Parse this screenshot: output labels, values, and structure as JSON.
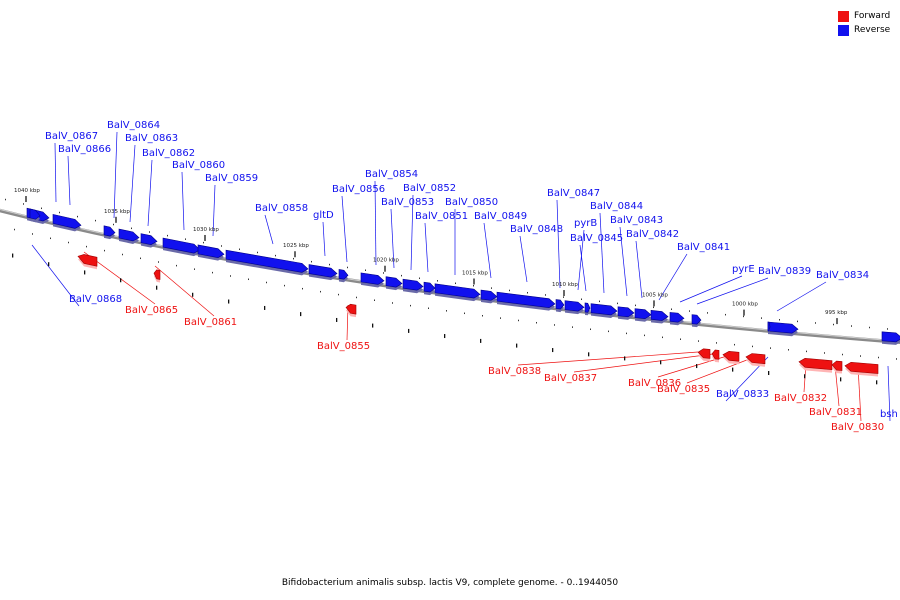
{
  "legend": {
    "forward_label": "Forward",
    "reverse_label": "Reverse",
    "forward_color": "#ee1111",
    "reverse_color": "#1111ee"
  },
  "caption": "Bifidobacterium animalis subsp. lactis V9, complete genome. - 0..1944050",
  "scale_labels": [
    "1040 kbp",
    "1035 kbp",
    "1030 kbp",
    "1025 kbp",
    "1020 kbp",
    "1015 kbp",
    "1010 kbp",
    "1005 kbp",
    "1000 kbp",
    "995 kbp"
  ],
  "genes": [
    {
      "name": "BalV_0867",
      "strand": "reverse"
    },
    {
      "name": "BalV_0866",
      "strand": "reverse"
    },
    {
      "name": "BalV_0868",
      "strand": "reverse"
    },
    {
      "name": "BalV_0865",
      "strand": "forward"
    },
    {
      "name": "BalV_0864",
      "strand": "reverse"
    },
    {
      "name": "BalV_0863",
      "strand": "reverse"
    },
    {
      "name": "BalV_0862",
      "strand": "reverse"
    },
    {
      "name": "BalV_0861",
      "strand": "forward"
    },
    {
      "name": "BalV_0860",
      "strand": "reverse"
    },
    {
      "name": "BalV_0859",
      "strand": "reverse"
    },
    {
      "name": "BalV_0858",
      "strand": "reverse"
    },
    {
      "name": "gltD",
      "strand": "reverse"
    },
    {
      "name": "BalV_0856",
      "strand": "reverse"
    },
    {
      "name": "BalV_0855",
      "strand": "forward"
    },
    {
      "name": "BalV_0854",
      "strand": "reverse"
    },
    {
      "name": "BalV_0853",
      "strand": "reverse"
    },
    {
      "name": "BalV_0852",
      "strand": "reverse"
    },
    {
      "name": "BalV_0851",
      "strand": "reverse"
    },
    {
      "name": "BalV_0850",
      "strand": "reverse"
    },
    {
      "name": "BalV_0849",
      "strand": "reverse"
    },
    {
      "name": "BalV_0848",
      "strand": "reverse"
    },
    {
      "name": "BalV_0847",
      "strand": "reverse"
    },
    {
      "name": "pyrB",
      "strand": "reverse"
    },
    {
      "name": "BalV_0845",
      "strand": "reverse"
    },
    {
      "name": "BalV_0844",
      "strand": "reverse"
    },
    {
      "name": "BalV_0843",
      "strand": "reverse"
    },
    {
      "name": "BalV_0842",
      "strand": "reverse"
    },
    {
      "name": "BalV_0841",
      "strand": "reverse"
    },
    {
      "name": "pyrE",
      "strand": "reverse"
    },
    {
      "name": "BalV_0839",
      "strand": "reverse"
    },
    {
      "name": "BalV_0834",
      "strand": "reverse"
    },
    {
      "name": "BalV_0838",
      "strand": "forward"
    },
    {
      "name": "BalV_0837",
      "strand": "forward"
    },
    {
      "name": "BalV_0836",
      "strand": "forward"
    },
    {
      "name": "BalV_0835",
      "strand": "forward"
    },
    {
      "name": "BalV_0833",
      "strand": "reverse"
    },
    {
      "name": "BalV_0832",
      "strand": "forward"
    },
    {
      "name": "BalV_0831",
      "strand": "forward"
    },
    {
      "name": "BalV_0830",
      "strand": "forward"
    },
    {
      "name": "bsh",
      "strand": "reverse"
    }
  ]
}
